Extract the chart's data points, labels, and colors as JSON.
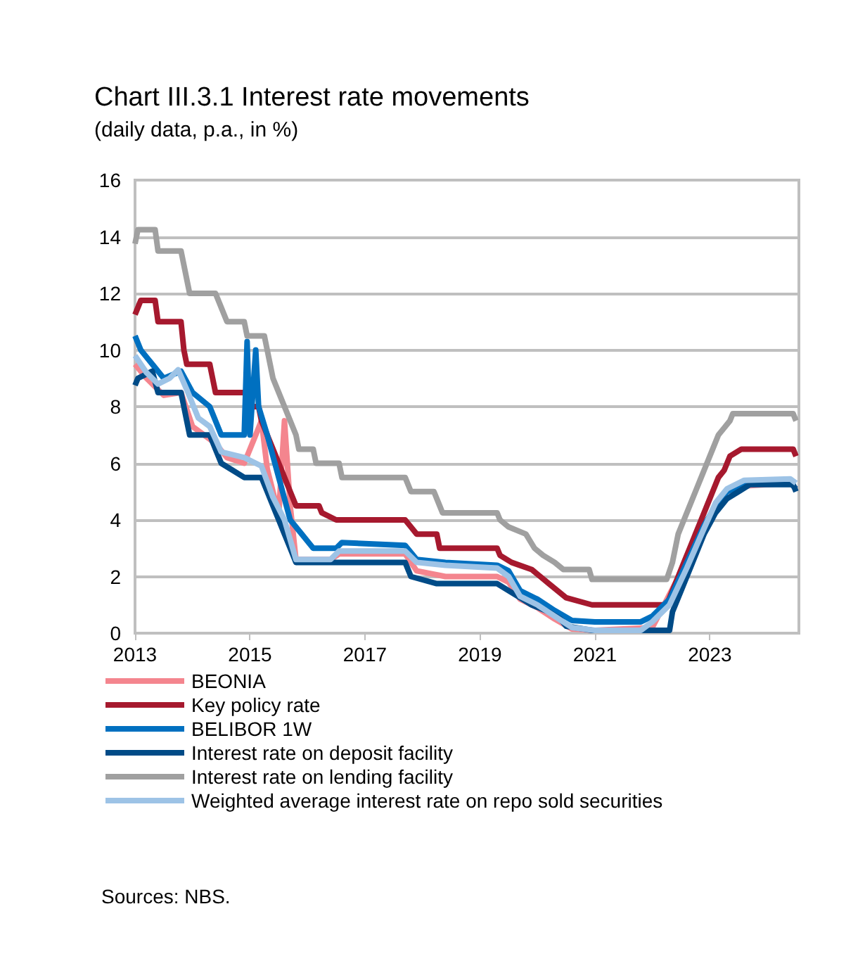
{
  "chart_data": {
    "type": "line",
    "title": "Chart III.3.1 Interest rate movements",
    "subtitle": "(daily data, p.a., in %)",
    "xlim": [
      2013,
      2024.55
    ],
    "xticks": [
      2013,
      2015,
      2017,
      2019,
      2021,
      2023
    ],
    "ylim": [
      0,
      16
    ],
    "yticks": [
      0,
      2,
      4,
      6,
      8,
      10,
      12,
      14,
      16
    ],
    "grid": "y",
    "legend": "bottom",
    "marker": "none",
    "line_style": "solid",
    "annotations": [
      "Sources: NBS."
    ],
    "series": [
      {
        "name": "BEONIA",
        "color": "#f4858e",
        "x": [
          2013,
          2013.2,
          2013.5,
          2013.8,
          2014.0,
          2014.4,
          2014.6,
          2014.9,
          2015.2,
          2015.3,
          2015.5,
          2015.6,
          2015.7,
          2015.8,
          2016.4,
          2016.55,
          2017.7,
          2017.9,
          2018.4,
          2019.3,
          2019.5,
          2019.7,
          2020.0,
          2020.3,
          2020.6,
          2021.0,
          2022.0,
          2023.1,
          2023.3,
          2023.6,
          2024.4,
          2024.5
        ],
        "values": [
          9.5,
          9.0,
          8.4,
          8.5,
          7.3,
          6.7,
          6.2,
          6.0,
          7.5,
          5.8,
          4.2,
          7.5,
          4.5,
          2.6,
          2.6,
          2.8,
          2.8,
          2.2,
          2.0,
          2.0,
          1.8,
          1.2,
          0.9,
          0.5,
          0.15,
          0.1,
          0.2,
          4.5,
          5.0,
          5.2,
          5.3,
          5.1
        ]
      },
      {
        "name": "Key policy rate",
        "color": "#a6192e",
        "x": [
          2013,
          2013.05,
          2013.1,
          2013.35,
          2013.4,
          2013.8,
          2013.85,
          2013.9,
          2014.3,
          2014.35,
          2014.4,
          2014.95,
          2015.0,
          2015.15,
          2015.2,
          2015.3,
          2015.4,
          2015.5,
          2015.6,
          2015.7,
          2015.8,
          2016.2,
          2016.25,
          2016.5,
          2017.7,
          2017.8,
          2017.9,
          2018.25,
          2018.3,
          2019.3,
          2019.35,
          2019.55,
          2019.9,
          2020.2,
          2020.35,
          2020.5,
          2020.95,
          2022.25,
          2022.35,
          2022.45,
          2022.55,
          2022.65,
          2022.75,
          2022.85,
          2022.95,
          2023.05,
          2023.15,
          2023.25,
          2023.35,
          2023.55,
          2024.45,
          2024.5
        ],
        "values": [
          11.25,
          11.5,
          11.75,
          11.75,
          11.0,
          11.0,
          10.0,
          9.5,
          9.5,
          9.0,
          8.5,
          8.5,
          8.0,
          8.0,
          7.5,
          7.0,
          6.5,
          6.0,
          5.5,
          5.0,
          4.5,
          4.5,
          4.25,
          4.0,
          4.0,
          3.75,
          3.5,
          3.5,
          3.0,
          3.0,
          2.75,
          2.5,
          2.25,
          1.75,
          1.5,
          1.25,
          1.0,
          1.0,
          1.5,
          2.0,
          2.5,
          3.0,
          3.5,
          4.0,
          4.5,
          5.0,
          5.5,
          5.75,
          6.25,
          6.5,
          6.5,
          6.25
        ]
      },
      {
        "name": "BELIBOR 1W",
        "color": "#0070c0",
        "x": [
          2013,
          2013.1,
          2013.3,
          2013.5,
          2013.8,
          2014.0,
          2014.3,
          2014.5,
          2014.9,
          2014.95,
          2015.0,
          2015.1,
          2015.15,
          2015.3,
          2015.5,
          2015.7,
          2015.9,
          2016.1,
          2016.5,
          2016.6,
          2017.7,
          2017.9,
          2018.4,
          2019.3,
          2019.5,
          2019.7,
          2020.0,
          2020.3,
          2020.6,
          2021.0,
          2021.8,
          2022.0,
          2022.3,
          2022.6,
          2022.9,
          2023.1,
          2023.3,
          2023.6,
          2024.4,
          2024.5
        ],
        "values": [
          10.5,
          10.0,
          9.5,
          9.0,
          9.25,
          8.5,
          8.0,
          7.0,
          7.0,
          10.3,
          7.0,
          10.0,
          8.0,
          7.0,
          5.5,
          4.0,
          3.5,
          3.0,
          3.0,
          3.2,
          3.1,
          2.6,
          2.5,
          2.4,
          2.2,
          1.5,
          1.2,
          0.8,
          0.45,
          0.4,
          0.4,
          0.6,
          1.2,
          2.5,
          3.8,
          4.5,
          5.0,
          5.25,
          5.3,
          5.1
        ]
      },
      {
        "name": "Interest rate on deposit facility",
        "color": "#004b87",
        "x": [
          2013,
          2013.05,
          2013.3,
          2013.4,
          2013.8,
          2013.9,
          2013.95,
          2014.3,
          2014.4,
          2014.5,
          2014.9,
          2015.2,
          2015.3,
          2015.4,
          2015.5,
          2015.6,
          2015.7,
          2015.8,
          2017.7,
          2017.8,
          2018.25,
          2019.3,
          2019.5,
          2019.7,
          2019.9,
          2020.2,
          2020.4,
          2020.5,
          2020.95,
          2022.3,
          2022.35,
          2022.5,
          2022.7,
          2022.9,
          2023.1,
          2023.3,
          2023.5,
          2023.7,
          2024.45,
          2024.5
        ],
        "values": [
          8.75,
          9.0,
          9.25,
          8.5,
          8.5,
          7.5,
          7.0,
          7.0,
          6.5,
          6.0,
          5.5,
          5.5,
          5.0,
          4.5,
          4.0,
          3.5,
          3.0,
          2.5,
          2.5,
          2.0,
          1.75,
          1.75,
          1.5,
          1.25,
          1.0,
          0.75,
          0.5,
          0.25,
          0.1,
          0.1,
          0.75,
          1.5,
          2.5,
          3.5,
          4.25,
          4.75,
          5.0,
          5.25,
          5.25,
          5.0
        ]
      },
      {
        "name": "Interest rate on lending facility",
        "color": "#a0a0a0",
        "x": [
          2013,
          2013.05,
          2013.35,
          2013.4,
          2013.8,
          2013.9,
          2013.95,
          2014.4,
          2014.5,
          2014.6,
          2014.9,
          2014.95,
          2015.25,
          2015.3,
          2015.35,
          2015.4,
          2015.5,
          2015.6,
          2015.7,
          2015.8,
          2015.85,
          2016.1,
          2016.15,
          2016.55,
          2016.6,
          2017.7,
          2017.8,
          2018.2,
          2018.3,
          2018.35,
          2019.3,
          2019.35,
          2019.5,
          2019.8,
          2019.95,
          2020.1,
          2020.3,
          2020.45,
          2020.9,
          2020.95,
          2022.25,
          2022.35,
          2022.45,
          2022.55,
          2022.65,
          2022.75,
          2022.85,
          2022.95,
          2023.05,
          2023.15,
          2023.25,
          2023.35,
          2023.4,
          2024.45,
          2024.5
        ],
        "values": [
          13.75,
          14.25,
          14.25,
          13.5,
          13.5,
          12.5,
          12.0,
          12.0,
          11.5,
          11.0,
          11.0,
          10.5,
          10.5,
          10.0,
          9.5,
          9.0,
          8.5,
          8.0,
          7.5,
          7.0,
          6.5,
          6.5,
          6.0,
          6.0,
          5.5,
          5.5,
          5.0,
          5.0,
          4.5,
          4.25,
          4.25,
          4.0,
          3.75,
          3.5,
          3.0,
          2.75,
          2.5,
          2.25,
          2.25,
          1.9,
          1.9,
          2.5,
          3.5,
          4.0,
          4.5,
          5.0,
          5.5,
          6.0,
          6.5,
          7.0,
          7.25,
          7.5,
          7.75,
          7.75,
          7.5
        ]
      },
      {
        "name": "Weighted average interest rate on repo sold securities",
        "color": "#9dc3e6",
        "x": [
          2013,
          2013.2,
          2013.4,
          2013.6,
          2013.75,
          2013.9,
          2014.1,
          2014.3,
          2014.5,
          2014.9,
          2015.2,
          2015.4,
          2015.6,
          2015.8,
          2016.4,
          2016.55,
          2017.7,
          2017.9,
          2018.4,
          2019.3,
          2019.5,
          2019.7,
          2020.0,
          2020.3,
          2020.6,
          2021.0,
          2021.8,
          2022.0,
          2022.3,
          2022.6,
          2022.9,
          2023.1,
          2023.3,
          2023.6,
          2024.4,
          2024.5
        ],
        "values": [
          9.8,
          9.2,
          8.8,
          9.0,
          9.3,
          8.6,
          7.6,
          7.3,
          6.4,
          6.2,
          5.9,
          4.8,
          4.0,
          2.6,
          2.6,
          2.9,
          2.9,
          2.5,
          2.4,
          2.3,
          2.0,
          1.3,
          1.0,
          0.6,
          0.2,
          0.1,
          0.1,
          0.4,
          1.0,
          2.3,
          3.7,
          4.6,
          5.1,
          5.4,
          5.45,
          5.3
        ]
      }
    ]
  }
}
